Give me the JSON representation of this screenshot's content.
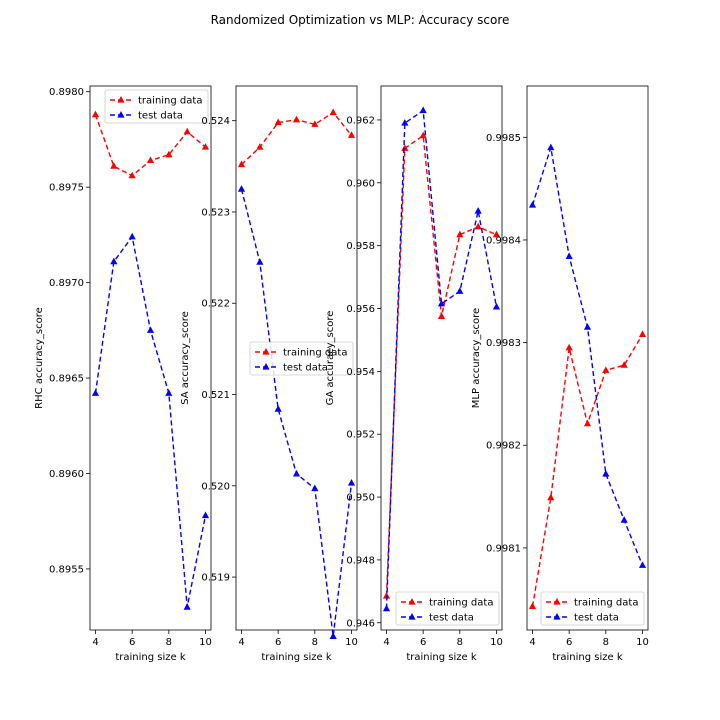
{
  "title": "Randomized Optimization vs MLP: Accuracy score",
  "colors": {
    "training": "#ff0000",
    "test": "#0000ff"
  },
  "chart_data": [
    {
      "type": "line",
      "id": "rhc",
      "xlabel": "training size k",
      "ylabel": "RHC accuracy_score",
      "xlim": [
        3.7,
        10.3
      ],
      "ylim": [
        0.89518,
        0.89803
      ],
      "xticks": [
        4,
        6,
        8,
        10
      ],
      "yticks": [
        0.8955,
        0.896,
        0.8965,
        0.897,
        0.8975,
        0.898
      ],
      "ytick_labels": [
        "0.8955",
        "0.8960",
        "0.8965",
        "0.8970",
        "0.8975",
        "0.8980"
      ],
      "legend": "top-right",
      "x": [
        4,
        5,
        6,
        7,
        8,
        9,
        10
      ],
      "series": [
        {
          "name": "training data",
          "color": "#ff0000",
          "values": [
            0.89788,
            0.89761,
            0.89756,
            0.89764,
            0.89767,
            0.89779,
            0.89771
          ]
        },
        {
          "name": "test data",
          "color": "#0000ff",
          "values": [
            0.89642,
            0.89711,
            0.89724,
            0.89675,
            0.89642,
            0.8953,
            0.89578
          ]
        }
      ]
    },
    {
      "type": "line",
      "id": "sa",
      "xlabel": "training size k",
      "ylabel": "SA accuracy_score",
      "xlim": [
        3.7,
        10.3
      ],
      "ylim": [
        0.51842,
        0.52438
      ],
      "xticks": [
        4,
        6,
        8,
        10
      ],
      "yticks": [
        0.519,
        0.52,
        0.521,
        0.522,
        0.523,
        0.524
      ],
      "ytick_labels": [
        "0.519",
        "0.520",
        "0.521",
        "0.522",
        "0.523",
        "0.524"
      ],
      "legend": "center",
      "x": [
        4,
        5,
        6,
        7,
        8,
        9,
        10
      ],
      "series": [
        {
          "name": "training data",
          "color": "#ff0000",
          "values": [
            0.52352,
            0.52371,
            0.52398,
            0.52401,
            0.52396,
            0.52409,
            0.52384
          ]
        },
        {
          "name": "test data",
          "color": "#0000ff",
          "values": [
            0.52325,
            0.52245,
            0.52084,
            0.52013,
            0.51997,
            0.51835,
            0.52003
          ]
        }
      ]
    },
    {
      "type": "line",
      "id": "ga",
      "xlabel": "training size k",
      "ylabel": "GA accuracy_score",
      "xlim": [
        3.7,
        10.3
      ],
      "ylim": [
        0.94577,
        0.96308
      ],
      "xticks": [
        4,
        6,
        8,
        10
      ],
      "yticks": [
        0.946,
        0.948,
        0.95,
        0.952,
        0.954,
        0.956,
        0.958,
        0.96,
        0.962
      ],
      "ytick_labels": [
        "0.946",
        "0.948",
        "0.950",
        "0.952",
        "0.954",
        "0.956",
        "0.958",
        "0.960",
        "0.962"
      ],
      "legend": "lower-right",
      "x": [
        4,
        5,
        6,
        7,
        8,
        9,
        10
      ],
      "series": [
        {
          "name": "training data",
          "color": "#ff0000",
          "values": [
            0.94685,
            0.9611,
            0.9615,
            0.95575,
            0.95835,
            0.9586,
            0.95835
          ]
        },
        {
          "name": "test data",
          "color": "#0000ff",
          "values": [
            0.94645,
            0.9619,
            0.9623,
            0.95615,
            0.95655,
            0.9591,
            0.95605
          ]
        }
      ]
    },
    {
      "type": "line",
      "id": "mlp",
      "xlabel": "training size k",
      "ylabel": "MLP accuracy_score",
      "xlim": [
        3.7,
        10.3
      ],
      "ylim": [
        0.99802,
        0.99855
      ],
      "xticks": [
        4,
        6,
        8,
        10
      ],
      "yticks": [
        0.9981,
        0.9982,
        0.9983,
        0.9984,
        0.9985
      ],
      "ytick_labels": [
        "0.9981",
        "0.9982",
        "0.9983",
        "0.9984",
        "0.9985"
      ],
      "legend": "lower-right",
      "x": [
        4,
        5,
        6,
        7,
        8,
        9,
        10
      ],
      "series": [
        {
          "name": "training data",
          "color": "#ff0000",
          "values": [
            0.998043,
            0.998149,
            0.998295,
            0.998221,
            0.998273,
            0.998278,
            0.998308
          ]
        },
        {
          "name": "test data",
          "color": "#0000ff",
          "values": [
            0.998434,
            0.99849,
            0.998384,
            0.998315,
            0.998172,
            0.998127,
            0.998083
          ]
        }
      ]
    }
  ]
}
